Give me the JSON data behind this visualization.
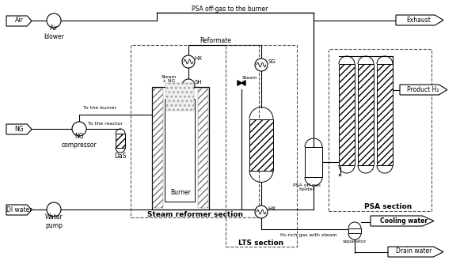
{
  "bg_color": "#ffffff",
  "line_color": "#000000",
  "font_size_label": 5.5,
  "font_size_section": 6.5,
  "labels": {
    "air": "Air",
    "air_blower": "Air\nblower",
    "ng": "NG",
    "ng_compressor": "NG\ncompressor",
    "di_water": "DI water",
    "water_pump": "Water\npump",
    "to_burner": "To the burner",
    "to_reactor": "To the reactor",
    "das": "DaS",
    "reformate": "Reformate",
    "steam": "Steam",
    "steam_ng": "Steam\n+ NG",
    "hx1": "HX",
    "sh": "SH",
    "sg": "SG",
    "hx2": "HX",
    "burner": "Burner",
    "steam_reformer_section": "Steam reformer section",
    "lts_section": "LTS section",
    "psa_section": "PSA section",
    "psa_offgas_holder": "PSA off-gas\nholder",
    "product_h2": "Product H₂",
    "exhaust": "Exhaust",
    "cooling_water": "Cooling water",
    "drain_water": "Drain water",
    "h2_rich": "H₂-rich gas with steam",
    "separator": "separator",
    "psa_offgas_burner": "PSA off-gas to the burner"
  }
}
